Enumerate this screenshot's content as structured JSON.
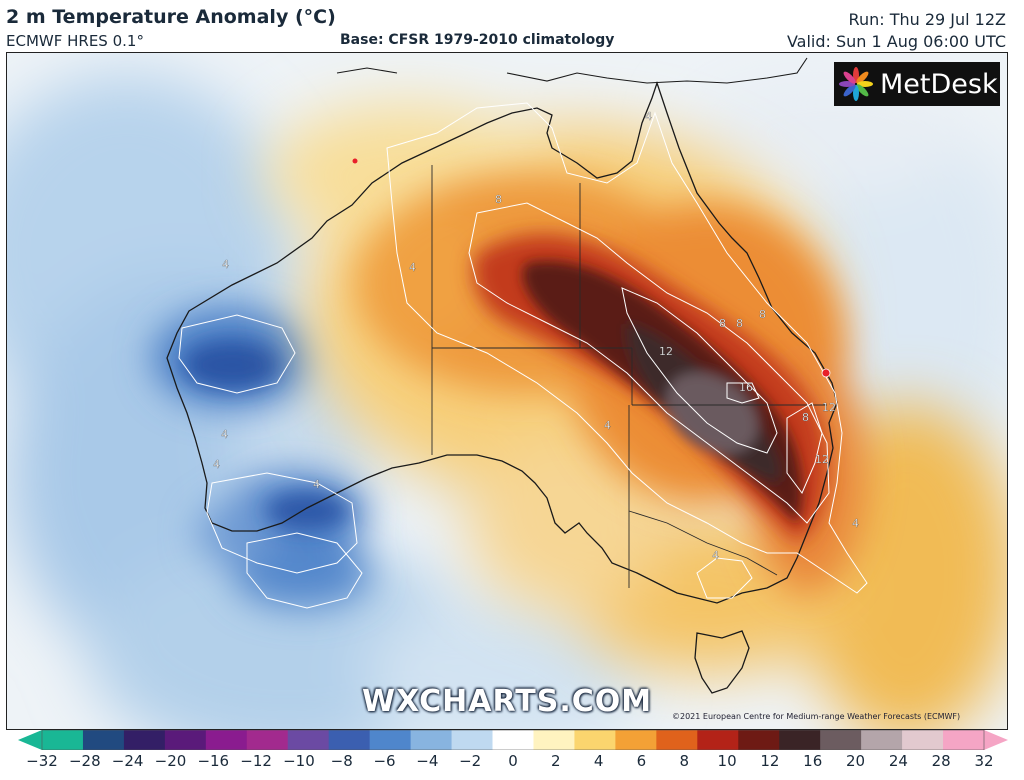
{
  "header": {
    "title": "2 m Temperature Anomaly (°C)",
    "model": "ECMWF HRES 0.1°",
    "base": "Base: CFSR 1979-2010 climatology",
    "run": "Run: Thu 29 Jul 12Z",
    "valid": "Valid: Sun 1 Aug 06:00 UTC"
  },
  "brand": {
    "logo_text": "MetDesk"
  },
  "watermark": "WXCHARTS.COM",
  "copyright": "©2021 European Centre for Medium-range Weather Forecasts (ECMWF)",
  "contour_labels": {
    "nt_4": "4",
    "nt_8": "8",
    "qld_12": "12",
    "qld_16": "16",
    "qld_8a": "8",
    "qld_8b": "8",
    "qld_8c": "8",
    "nsw_8": "8",
    "nsw_12a": "12",
    "nsw_12b": "12",
    "sa_4": "4",
    "sea_4": "4",
    "vic_4": "4",
    "wa_4a": "4",
    "wa_4b": "4",
    "wa_4c": "4",
    "wa_4d": "4",
    "top_4": "4"
  },
  "legend": {
    "labels": [
      "−32",
      "−28",
      "−24",
      "−20",
      "−16",
      "−12",
      "−10",
      "−8",
      "−6",
      "−4",
      "−2",
      "0",
      "2",
      "4",
      "6",
      "8",
      "10",
      "12",
      "16",
      "20",
      "24",
      "28",
      "32"
    ],
    "colors": [
      "#19b795",
      "#214a80",
      "#331f66",
      "#5a1a7a",
      "#8a1c8f",
      "#a22a8e",
      "#6b4aa3",
      "#3b5fb0",
      "#4f86cc",
      "#88b4e0",
      "#bfd9f0",
      "#ffffff",
      "#fff3c0",
      "#fbd56e",
      "#f3a136",
      "#e0621c",
      "#b32318",
      "#6e1a14",
      "#3a2426",
      "#6c5c60",
      "#b4a5aa",
      "#e2c9cf",
      "#f5a5c5"
    ]
  }
}
